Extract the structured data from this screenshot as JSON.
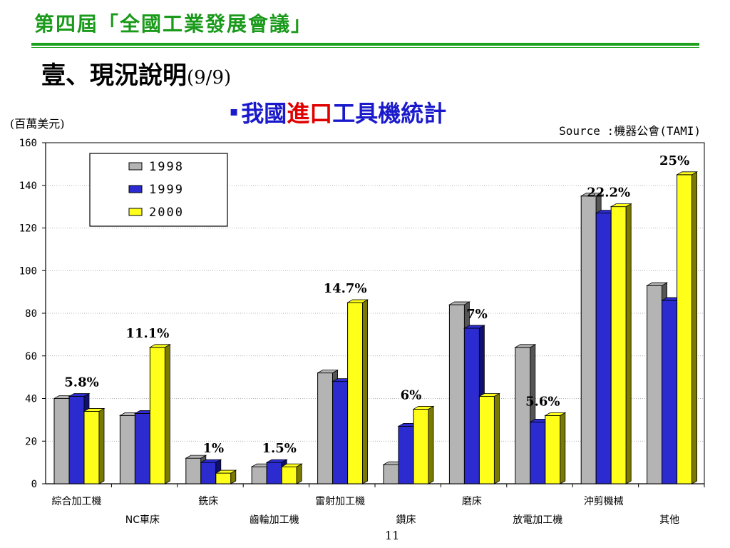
{
  "header": {
    "conference_title": "第四屆「全國工業發展會議」",
    "main_title": "壹、現況說明",
    "main_title_suffix": "(9/9)",
    "chart_title_prefix": "我國",
    "chart_title_highlight": "進口",
    "chart_title_suffix": "工具機統計",
    "bullet": "▪"
  },
  "ylabel_text": "(百萬美元)",
  "source_text": "Source :機器公會(TAMI)",
  "page_number": "11",
  "colors": {
    "title_green": "#1a9a1a",
    "chart_title_blue": "#1a1acc",
    "highlight_red": "#e00000",
    "series": [
      "#b4b4b4",
      "#2b2bd0",
      "#ffff1a"
    ],
    "series_side": [
      "#555555",
      "#101070",
      "#7a7a00"
    ]
  },
  "chart_data": {
    "type": "bar",
    "ylim": [
      0,
      160
    ],
    "yticks": [
      "0",
      "20",
      "40",
      "60",
      "80",
      "100",
      "120",
      "140",
      "160"
    ],
    "grid": true,
    "legend_position": "top-left",
    "categories": [
      "綜合加工機",
      "NC車床",
      "銑床",
      "齒輪加工機",
      "雷射加工機",
      "鑽床",
      "磨床",
      "放電加工機",
      "沖剪機械",
      "其他"
    ],
    "series": [
      {
        "name": "1998",
        "values": [
          40,
          32,
          12,
          8,
          52,
          9,
          84,
          64,
          135,
          93
        ]
      },
      {
        "name": "1999",
        "values": [
          41,
          33,
          10,
          10,
          48,
          27,
          73,
          29,
          127,
          86
        ]
      },
      {
        "name": "2000",
        "values": [
          34,
          64,
          5,
          8,
          85,
          35,
          41,
          32,
          130,
          145
        ]
      }
    ],
    "annotations": [
      "5.8%",
      "11.1%",
      "1%",
      "1.5%",
      "14.7%",
      "6%",
      "7%",
      "5.6%",
      "22.2%",
      "25%"
    ]
  }
}
